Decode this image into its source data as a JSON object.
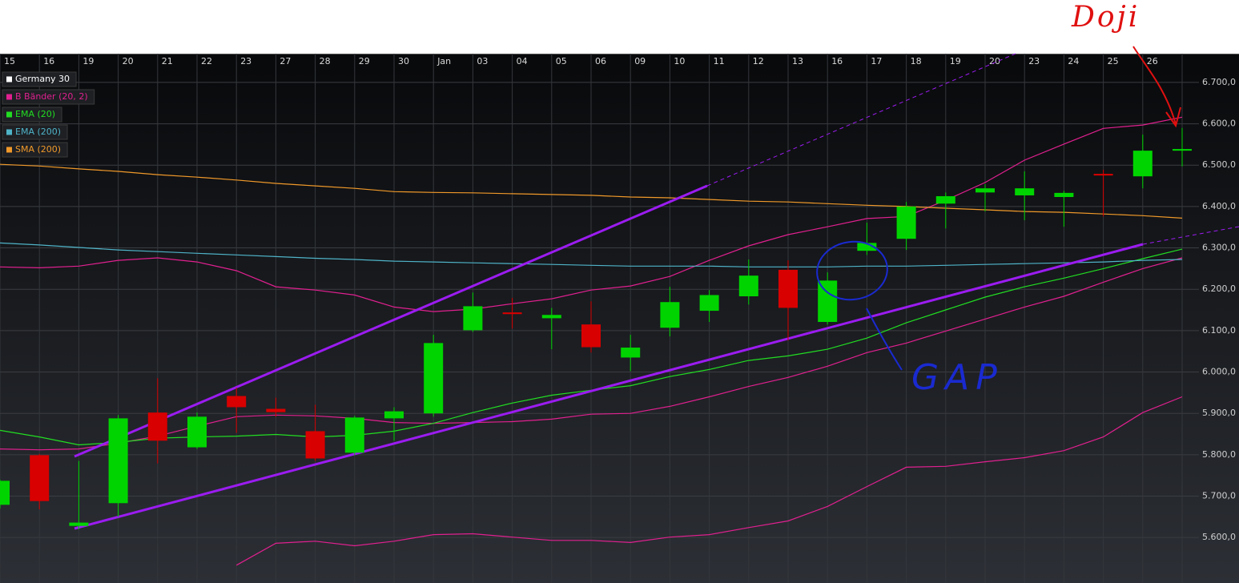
{
  "chart_data": {
    "type": "candlestick",
    "categories": [
      "15",
      "16",
      "19",
      "20",
      "21",
      "22",
      "23",
      "27",
      "28",
      "29",
      "30",
      "Jan",
      "03",
      "04",
      "05",
      "06",
      "09",
      "10",
      "11",
      "12",
      "13",
      "16",
      "17",
      "18",
      "19",
      "20",
      "23",
      "24",
      "25",
      "26",
      null
    ],
    "ylim": [
      5490,
      6725
    ],
    "yticks": [
      {
        "value": 5600,
        "label": "5.600,0"
      },
      {
        "value": 5700,
        "label": "5.700,0"
      },
      {
        "value": 5800,
        "label": "5.800,0"
      },
      {
        "value": 5900,
        "label": "5.900,0"
      },
      {
        "value": 6000,
        "label": "6.000,0"
      },
      {
        "value": 6100,
        "label": "6.100,0"
      },
      {
        "value": 6200,
        "label": "6.200,0"
      },
      {
        "value": 6300,
        "label": "6.300,0"
      },
      {
        "value": 6400,
        "label": "6.400,0"
      },
      {
        "value": 6500,
        "label": "6.500,0"
      },
      {
        "value": 6600,
        "label": "6.600,0"
      },
      {
        "value": 6700,
        "label": "6.700,0"
      }
    ],
    "grid": true,
    "up_color": "#00d400",
    "down_color": "#d80000",
    "series": [
      {
        "name": "Germany 30",
        "color": "#ffffff",
        "open": [
          5679,
          5799,
          5628,
          5683,
          5902,
          5818,
          5942,
          5911,
          5857,
          5805,
          5888,
          5900,
          6101,
          6144,
          6130,
          6115,
          6035,
          6107,
          6148,
          6183,
          6247,
          6121,
          6293,
          6322,
          6407,
          6434,
          6427,
          6423,
          6479,
          6473,
          6535
        ],
        "high": [
          5740,
          5802,
          5785,
          5896,
          5985,
          5902,
          5962,
          5938,
          5921,
          5894,
          5915,
          6090,
          6192,
          6179,
          6155,
          6171,
          6090,
          6206,
          6198,
          6272,
          6270,
          6241,
          6361,
          6411,
          6434,
          6454,
          6485,
          6438,
          6489,
          6574,
          6590
        ],
        "low": [
          5670,
          5668,
          5620,
          5650,
          5779,
          5814,
          5853,
          5892,
          5785,
          5799,
          5834,
          5892,
          6097,
          6105,
          6055,
          6047,
          6002,
          6086,
          6121,
          6163,
          6076,
          6115,
          6283,
          6295,
          6347,
          6388,
          6367,
          6351,
          6376,
          6444,
          6497
        ],
        "close": [
          5737,
          5688,
          5636,
          5888,
          5834,
          5892,
          5915,
          5903,
          5791,
          5890,
          5905,
          6070,
          6159,
          6140,
          6138,
          6060,
          6059,
          6169,
          6186,
          6233,
          6155,
          6221,
          6312,
          6400,
          6425,
          6444,
          6444,
          6433,
          6475,
          6535,
          6539
        ]
      },
      {
        "name": "B Bänder (20, 2)",
        "color": "#e0208f",
        "upper": [
          6254,
          6252,
          6256,
          6270,
          6276,
          6266,
          6245,
          6206,
          6198,
          6186,
          6157,
          6146,
          6152,
          6165,
          6177,
          6198,
          6208,
          6231,
          6270,
          6305,
          6332,
          6351,
          6371,
          6376,
          6415,
          6458,
          6512,
          6551,
          6589,
          6597,
          6616
        ],
        "middle": [
          5814,
          5812,
          5814,
          5828,
          5845,
          5869,
          5892,
          5896,
          5894,
          5888,
          5878,
          5876,
          5878,
          5880,
          5886,
          5898,
          5900,
          5917,
          5940,
          5965,
          5987,
          6014,
          6047,
          6070,
          6099,
          6128,
          6157,
          6183,
          6217,
          6250,
          6276
        ],
        "lower": [
          null,
          null,
          null,
          null,
          null,
          null,
          5533,
          5586,
          5591,
          5580,
          5591,
          5607,
          5609,
          5601,
          5593,
          5593,
          5588,
          5601,
          5607,
          5624,
          5640,
          5675,
          5723,
          5770,
          5772,
          5783,
          5793,
          5810,
          5843,
          5902,
          5940
        ]
      },
      {
        "name": "EMA (20)",
        "color": "#22dd22",
        "values": [
          5859,
          5843,
          5824,
          5830,
          5840,
          5843,
          5845,
          5849,
          5843,
          5847,
          5857,
          5876,
          5902,
          5925,
          5944,
          5956,
          5967,
          5989,
          6006,
          6028,
          6039,
          6055,
          6082,
          6119,
          6150,
          6181,
          6206,
          6227,
          6250,
          6274,
          6297
        ]
      },
      {
        "name": "EMA (200)",
        "color": "#4fb3c8",
        "values": [
          6312,
          6307,
          6301,
          6295,
          6291,
          6287,
          6283,
          6279,
          6275,
          6272,
          6268,
          6266,
          6264,
          6262,
          6260,
          6258,
          6256,
          6256,
          6256,
          6254,
          6254,
          6254,
          6256,
          6256,
          6258,
          6260,
          6262,
          6264,
          6266,
          6270,
          6272
        ]
      },
      {
        "name": "SMA (200)",
        "color": "#f0992a",
        "values": [
          6502,
          6498,
          6491,
          6485,
          6477,
          6471,
          6464,
          6456,
          6450,
          6444,
          6436,
          6434,
          6433,
          6431,
          6429,
          6427,
          6423,
          6421,
          6417,
          6413,
          6411,
          6407,
          6403,
          6400,
          6396,
          6392,
          6388,
          6386,
          6382,
          6378,
          6372
        ]
      }
    ],
    "annotations": [
      {
        "text": "Doji",
        "color": "#e01010"
      },
      {
        "text": "GAP",
        "color": "#1a2ad0"
      }
    ]
  }
}
